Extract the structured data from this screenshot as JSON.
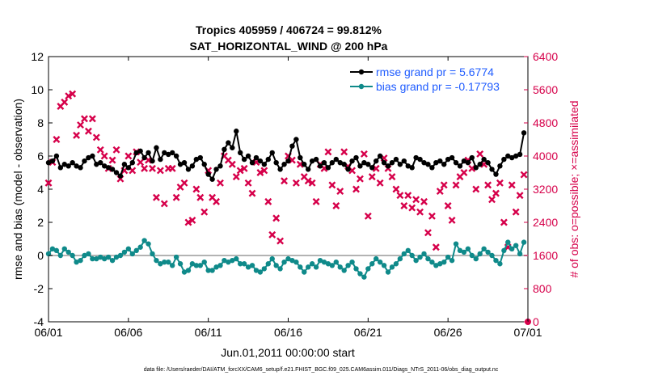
{
  "colors": {
    "rmse": "#000000",
    "bias": "#0f8a8a",
    "obs_count": "#d6004a",
    "zero_line": "#b3b3b3",
    "legend_text": "#1f5cff"
  },
  "chart_data": {
    "type": "line",
    "title": "Tropics 405959 / 406724 = 99.812%",
    "subtitle": "SAT_HORIZONTAL_WIND @ 200 hPa",
    "xlabel": "Jun.01,2011 00:00:00 start",
    "ylabel": "rmse and bias (model - observation)",
    "y2label": "# of obs: o=possible; ×=assimilated",
    "xlim": [
      0,
      30
    ],
    "ylim": [
      -4,
      12
    ],
    "y2lim": [
      0,
      6400
    ],
    "x_ticks": [
      0,
      5,
      10,
      15,
      20,
      25,
      30
    ],
    "x_tick_labels": [
      "06/01",
      "06/06",
      "06/11",
      "06/16",
      "06/21",
      "06/26",
      "07/01"
    ],
    "y_ticks": [
      -4,
      -2,
      0,
      2,
      4,
      6,
      8,
      10,
      12
    ],
    "y_tick_labels": [
      "-4",
      "-2",
      "0",
      "2",
      "4",
      "6",
      "8",
      "10",
      "12"
    ],
    "y2_ticks": [
      0,
      800,
      1600,
      2400,
      3200,
      4000,
      4800,
      5600,
      6400
    ],
    "y2_tick_labels": [
      "0",
      "800",
      "1600",
      "2400",
      "3200",
      "4000",
      "4800",
      "5600",
      "6400"
    ],
    "grid": false,
    "legend_position": "top-right",
    "zero_line": 0,
    "footnote": "data file: /Users/raeder/DAI/ATM_forcXX/CAM6_setup/f.e21.FHIST_BGC.f09_025.CAM6assim.011/Diags_NTrS_2011-06/obs_diag_output.nc",
    "series": [
      {
        "name": "rmse grand pr = 5.6774",
        "axis": "left",
        "marker": "circle",
        "x": [
          0.0,
          0.25,
          0.5,
          0.75,
          1.0,
          1.25,
          1.5,
          1.75,
          2.0,
          2.25,
          2.5,
          2.75,
          3.0,
          3.25,
          3.5,
          3.75,
          4.0,
          4.25,
          4.5,
          4.75,
          5.0,
          5.25,
          5.5,
          5.75,
          6.0,
          6.25,
          6.5,
          6.75,
          7.0,
          7.25,
          7.5,
          7.75,
          8.0,
          8.25,
          8.5,
          8.75,
          9.0,
          9.25,
          9.5,
          9.75,
          10.0,
          10.25,
          10.5,
          10.75,
          11.0,
          11.25,
          11.5,
          11.75,
          12.0,
          12.25,
          12.5,
          12.75,
          13.0,
          13.25,
          13.5,
          13.75,
          14.0,
          14.25,
          14.5,
          14.75,
          15.0,
          15.25,
          15.5,
          15.75,
          16.0,
          16.25,
          16.5,
          16.75,
          17.0,
          17.25,
          17.5,
          17.75,
          18.0,
          18.25,
          18.5,
          18.75,
          19.0,
          19.25,
          19.5,
          19.75,
          20.0,
          20.25,
          20.5,
          20.75,
          21.0,
          21.25,
          21.5,
          21.75,
          22.0,
          22.25,
          22.5,
          22.75,
          23.0,
          23.25,
          23.5,
          23.75,
          24.0,
          24.25,
          24.5,
          24.75,
          25.0,
          25.25,
          25.5,
          25.75,
          26.0,
          26.25,
          26.5,
          26.75,
          27.0,
          27.25,
          27.5,
          27.75,
          28.0,
          28.25,
          28.5,
          28.75,
          29.0,
          29.25,
          29.5,
          29.75
        ],
        "values": [
          5.6,
          5.7,
          6.0,
          5.3,
          5.5,
          5.4,
          5.6,
          5.4,
          5.3,
          5.7,
          5.9,
          6.0,
          5.5,
          5.6,
          5.4,
          5.3,
          5.2,
          5.0,
          4.8,
          5.5,
          5.3,
          5.6,
          6.2,
          6.3,
          5.9,
          6.2,
          5.7,
          6.5,
          5.8,
          6.2,
          6.1,
          6.2,
          6.0,
          5.5,
          5.6,
          5.2,
          5.4,
          5.8,
          5.9,
          5.5,
          4.9,
          4.6,
          5.2,
          5.4,
          6.4,
          6.8,
          6.5,
          7.5,
          6.2,
          5.8,
          6.0,
          5.6,
          5.9,
          5.7,
          5.5,
          5.8,
          6.2,
          5.6,
          5.2,
          5.5,
          5.7,
          6.6,
          7.0,
          5.9,
          5.5,
          5.2,
          5.7,
          5.8,
          5.4,
          5.6,
          5.3,
          5.6,
          5.8,
          5.6,
          5.5,
          5.2,
          5.7,
          5.9,
          5.4,
          5.6,
          5.5,
          5.3,
          5.7,
          6.0,
          5.6,
          5.4,
          5.6,
          5.8,
          5.5,
          5.7,
          5.4,
          5.3,
          5.9,
          5.8,
          5.6,
          5.5,
          5.3,
          5.6,
          5.7,
          5.5,
          5.8,
          5.9,
          5.6,
          5.4,
          5.7,
          5.6,
          5.9,
          5.3,
          5.5,
          5.8,
          5.6,
          5.2,
          4.9,
          5.4,
          5.8,
          6.0,
          5.9,
          6.0,
          6.1,
          7.4
        ]
      },
      {
        "name": "bias grand pr = -0.17793",
        "axis": "left",
        "marker": "circle",
        "x": [
          0.0,
          0.25,
          0.5,
          0.75,
          1.0,
          1.25,
          1.5,
          1.75,
          2.0,
          2.25,
          2.5,
          2.75,
          3.0,
          3.25,
          3.5,
          3.75,
          4.0,
          4.25,
          4.5,
          4.75,
          5.0,
          5.25,
          5.5,
          5.75,
          6.0,
          6.25,
          6.5,
          6.75,
          7.0,
          7.25,
          7.5,
          7.75,
          8.0,
          8.25,
          8.5,
          8.75,
          9.0,
          9.25,
          9.5,
          9.75,
          10.0,
          10.25,
          10.5,
          10.75,
          11.0,
          11.25,
          11.5,
          11.75,
          12.0,
          12.25,
          12.5,
          12.75,
          13.0,
          13.25,
          13.5,
          13.75,
          14.0,
          14.25,
          14.5,
          14.75,
          15.0,
          15.25,
          15.5,
          15.75,
          16.0,
          16.25,
          16.5,
          16.75,
          17.0,
          17.25,
          17.5,
          17.75,
          18.0,
          18.25,
          18.5,
          18.75,
          19.0,
          19.25,
          19.5,
          19.75,
          20.0,
          20.25,
          20.5,
          20.75,
          21.0,
          21.25,
          21.5,
          21.75,
          22.0,
          22.25,
          22.5,
          22.75,
          23.0,
          23.25,
          23.5,
          23.75,
          24.0,
          24.25,
          24.5,
          24.75,
          25.0,
          25.25,
          25.5,
          25.75,
          26.0,
          26.25,
          26.5,
          26.75,
          27.0,
          27.25,
          27.5,
          27.75,
          28.0,
          28.25,
          28.5,
          28.75,
          29.0,
          29.25,
          29.5,
          29.75
        ],
        "values": [
          0.1,
          0.4,
          0.3,
          0.0,
          0.4,
          0.2,
          0.0,
          -0.4,
          -0.3,
          0.0,
          0.1,
          -0.2,
          -0.2,
          -0.1,
          -0.2,
          -0.1,
          -0.3,
          -0.1,
          0.0,
          0.2,
          0.4,
          0.1,
          0.3,
          0.5,
          0.9,
          0.7,
          0.1,
          -0.3,
          -0.5,
          -0.4,
          -0.4,
          -0.6,
          -0.1,
          -0.5,
          -1.0,
          -0.9,
          -0.5,
          -0.6,
          -0.6,
          -0.4,
          -0.9,
          -0.9,
          -0.7,
          -0.6,
          -0.3,
          -0.4,
          -0.3,
          -0.2,
          -0.5,
          -0.5,
          -0.7,
          -0.6,
          -0.9,
          -1.0,
          -0.8,
          -0.5,
          -0.2,
          -0.6,
          -0.8,
          -0.4,
          -0.2,
          -0.3,
          -0.4,
          -0.7,
          -1.0,
          -0.7,
          -0.5,
          -0.7,
          -0.3,
          -0.4,
          -0.5,
          -0.6,
          -0.4,
          -0.7,
          -0.9,
          -0.6,
          -0.4,
          -0.8,
          -1.1,
          -1.3,
          -0.8,
          -0.5,
          -0.2,
          -0.4,
          -0.6,
          -1.0,
          -0.7,
          -0.5,
          -0.2,
          0.1,
          0.3,
          0.0,
          -0.3,
          -0.1,
          0.1,
          -0.2,
          -0.4,
          -0.6,
          -0.5,
          -0.4,
          -0.1,
          -0.3,
          0.7,
          0.3,
          0.2,
          0.4,
          0.0,
          -0.2,
          0.1,
          0.4,
          0.2,
          0.0,
          -0.3,
          -0.5,
          0.3,
          0.8,
          0.4,
          0.6,
          0.1,
          0.8
        ]
      },
      {
        "name": "# of obs assimilated",
        "axis": "right",
        "marker": "x",
        "x": [
          0.0,
          0.25,
          0.5,
          0.75,
          1.0,
          1.25,
          1.5,
          1.75,
          2.0,
          2.25,
          2.5,
          2.75,
          3.0,
          3.25,
          3.5,
          3.75,
          4.0,
          4.25,
          4.5,
          4.75,
          5.0,
          5.25,
          5.5,
          5.75,
          6.0,
          6.25,
          6.5,
          6.75,
          7.0,
          7.25,
          7.5,
          7.75,
          8.0,
          8.25,
          8.5,
          8.75,
          9.0,
          9.25,
          9.5,
          9.75,
          10.0,
          10.25,
          10.5,
          10.75,
          11.0,
          11.25,
          11.5,
          11.75,
          12.0,
          12.25,
          12.5,
          12.75,
          13.0,
          13.25,
          13.5,
          13.75,
          14.0,
          14.25,
          14.5,
          14.75,
          15.0,
          15.25,
          15.5,
          15.75,
          16.0,
          16.25,
          16.5,
          16.75,
          17.0,
          17.25,
          17.5,
          17.75,
          18.0,
          18.25,
          18.5,
          18.75,
          19.0,
          19.25,
          19.5,
          19.75,
          20.0,
          20.25,
          20.5,
          20.75,
          21.0,
          21.25,
          21.5,
          21.75,
          22.0,
          22.25,
          22.5,
          22.75,
          23.0,
          23.25,
          23.5,
          23.75,
          24.0,
          24.25,
          24.5,
          24.75,
          25.0,
          25.25,
          25.5,
          25.75,
          26.0,
          26.25,
          26.5,
          26.75,
          27.0,
          27.25,
          27.5,
          27.75,
          28.0,
          28.25,
          28.5,
          28.75,
          29.0,
          29.25,
          29.5,
          29.75
        ],
        "values": [
          3350,
          3850,
          4400,
          5200,
          5300,
          5450,
          5500,
          4500,
          4750,
          4900,
          4600,
          4900,
          4450,
          4150,
          4000,
          3700,
          3900,
          4150,
          3450,
          3650,
          4000,
          3650,
          4100,
          3850,
          3700,
          3900,
          3700,
          3000,
          3650,
          2850,
          3700,
          3700,
          3000,
          3250,
          3350,
          2400,
          2450,
          3200,
          3000,
          2650,
          3650,
          3000,
          2900,
          3350,
          4000,
          3900,
          3800,
          3500,
          3650,
          3700,
          3350,
          3100,
          3850,
          3600,
          3650,
          2900,
          2100,
          2500,
          1950,
          3400,
          4000,
          3900,
          3350,
          3800,
          3500,
          3400,
          3350,
          2900,
          3800,
          3700,
          4100,
          3300,
          2800,
          3150,
          4100,
          3750,
          3650,
          3200,
          3450,
          4050,
          2550,
          3500,
          3700,
          3350,
          3950,
          3700,
          3500,
          3200,
          3050,
          2800,
          3050,
          2750,
          2950,
          2650,
          2900,
          2150,
          2550,
          1800,
          3150,
          3300,
          2800,
          2450,
          3300,
          3500,
          3600,
          3900,
          3700,
          3200,
          4050,
          3800,
          3300,
          2950,
          3100,
          3350,
          2400,
          1800,
          3300,
          2650,
          3050,
          3550
        ]
      }
    ]
  }
}
